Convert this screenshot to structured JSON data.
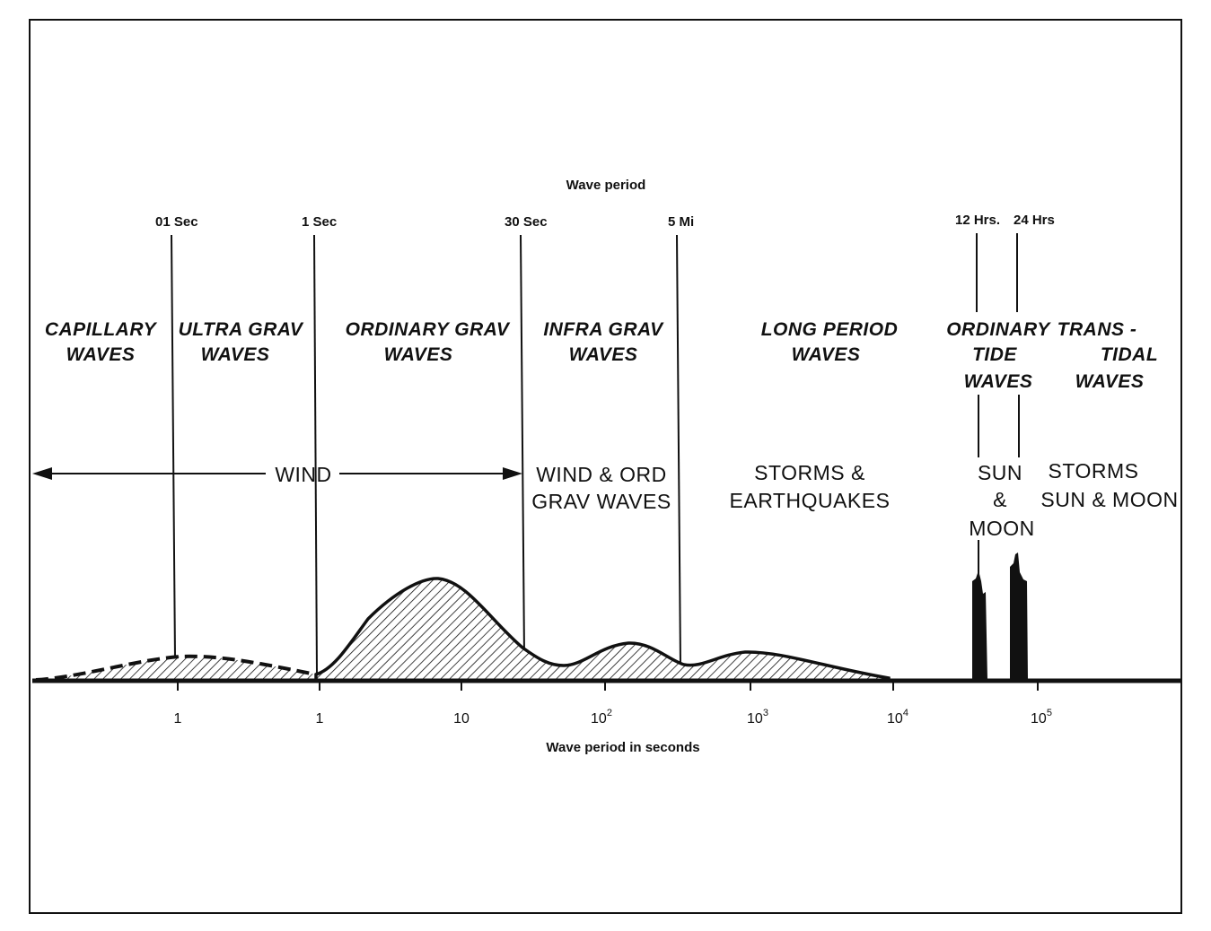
{
  "top_axis": {
    "title": "Wave period",
    "markers": [
      {
        "label": "01 Sec"
      },
      {
        "label": "1 Sec"
      },
      {
        "label": "30 Sec"
      },
      {
        "label": "5 Mi"
      },
      {
        "label": "12 Hrs."
      },
      {
        "label": "24 Hrs"
      }
    ]
  },
  "bands": [
    {
      "lines": [
        "CAPILLARY",
        "WAVES"
      ]
    },
    {
      "lines": [
        "ULTRA GRAV",
        "WAVES"
      ]
    },
    {
      "lines": [
        "ORDINARY GRAV",
        "WAVES"
      ]
    },
    {
      "lines": [
        "INFRA GRAV",
        "WAVES"
      ]
    },
    {
      "lines": [
        "LONG PERIOD",
        "WAVES"
      ]
    },
    {
      "lines": [
        "ORDINARY",
        "TIDE",
        "WAVES"
      ]
    },
    {
      "lines": [
        "TRANS -",
        "TIDAL",
        "WAVES"
      ]
    }
  ],
  "causes": [
    {
      "lines": [
        "WIND"
      ]
    },
    {
      "lines": [
        "WIND & ORD",
        "GRAV WAVES"
      ]
    },
    {
      "lines": [
        "STORMS &",
        "EARTHQUAKES"
      ]
    },
    {
      "lines": [
        "SUN",
        "&",
        "MOON"
      ]
    },
    {
      "lines": [
        "STORMS",
        "SUN & MOON"
      ]
    }
  ],
  "bottom_axis": {
    "title": "Wave period in seconds",
    "ticks": [
      {
        "label": "1",
        "exp": ""
      },
      {
        "label": "1",
        "exp": ""
      },
      {
        "label": "10",
        "exp": ""
      },
      {
        "label": "10",
        "exp": "2"
      },
      {
        "label": "10",
        "exp": "3"
      },
      {
        "label": "10",
        "exp": "4"
      },
      {
        "label": "10",
        "exp": "5"
      }
    ]
  }
}
